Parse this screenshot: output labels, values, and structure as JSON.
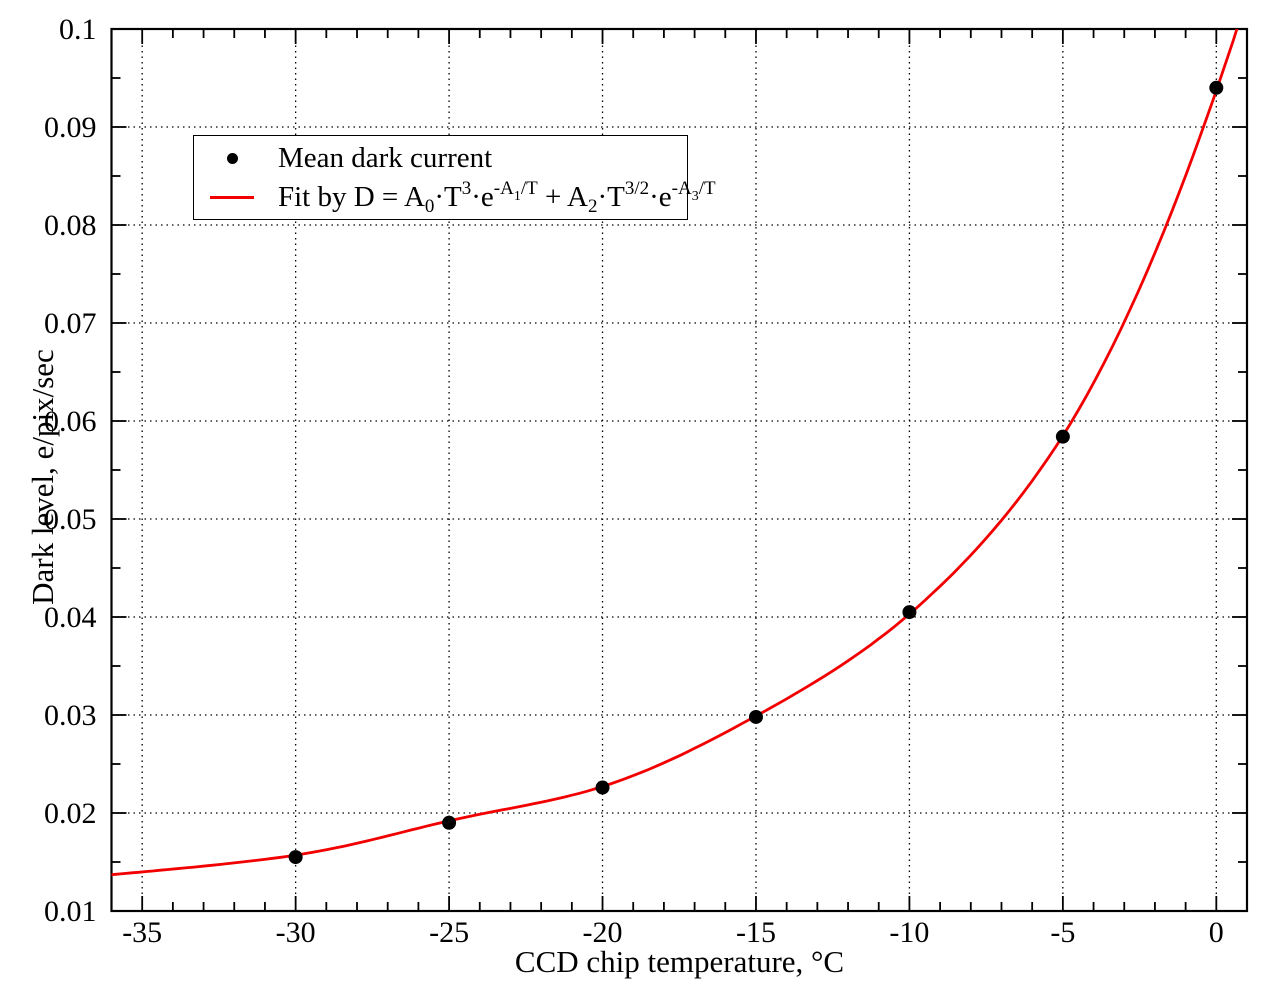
{
  "page": {
    "background": "#ffffff"
  },
  "chart_data": {
    "type": "scatter",
    "title": "",
    "xlabel": "CCD chip temperature, °C",
    "ylabel": "Dark level, e/pix/sec",
    "xlim": [
      -36,
      1
    ],
    "ylim": [
      0.01,
      0.1
    ],
    "x_major_ticks": [
      -35,
      -30,
      -25,
      -20,
      -15,
      -10,
      -5,
      0
    ],
    "x_tick_labels": [
      "-35",
      "-30",
      "-25",
      "-20",
      "-15",
      "-10",
      "-5",
      "0"
    ],
    "x_minor_tick_step": 1,
    "y_major_ticks": [
      0.01,
      0.02,
      0.03,
      0.04,
      0.05,
      0.06,
      0.07,
      0.08,
      0.09,
      0.1
    ],
    "y_tick_labels": [
      "0.01",
      "0.02",
      "0.03",
      "0.04",
      "0.05",
      "0.06",
      "0.07",
      "0.08",
      "0.09",
      "0.1"
    ],
    "y_minor_tick_step": 0.005,
    "grid": {
      "style": "dotted",
      "at": "major-ticks",
      "color": "#000000"
    },
    "legend_position": "upper-left",
    "series": [
      {
        "name": "Mean dark current",
        "type": "scatter",
        "marker": "filled-circle",
        "color": "#000000",
        "points": [
          [
            -30,
            0.0155
          ],
          [
            -25,
            0.019
          ],
          [
            -20,
            0.0226
          ],
          [
            -15,
            0.0298
          ],
          [
            -10,
            0.0405
          ],
          [
            -5,
            0.0584
          ],
          [
            0,
            0.094
          ]
        ]
      },
      {
        "name": "Fit by D = A0·T^3·e^(-A1/T) + A2·T^(3/2)·e^(-A3/T)",
        "type": "line",
        "color": "#f20000",
        "curve_anchors": [
          [
            -36,
            0.0137
          ],
          [
            -30,
            0.0157
          ],
          [
            -25,
            0.0192
          ],
          [
            -20,
            0.0227
          ],
          [
            -15,
            0.0299
          ],
          [
            -10,
            0.0403
          ],
          [
            -5,
            0.0585
          ],
          [
            0,
            0.0937
          ],
          [
            1,
            0.1035
          ]
        ]
      }
    ]
  },
  "legend": {
    "mean_label": "Mean dark current",
    "fit_label_parts": [
      {
        "t": "text",
        "v": "Fit by D = A"
      },
      {
        "t": "sub",
        "v": "0"
      },
      {
        "t": "text",
        "v": "·T"
      },
      {
        "t": "sup",
        "v": "3"
      },
      {
        "t": "text",
        "v": "·e"
      },
      {
        "t": "sup",
        "v": "-A"
      },
      {
        "t": "supsub",
        "v": "1"
      },
      {
        "t": "sup",
        "v": "/T"
      },
      {
        "t": "text",
        "v": " + A"
      },
      {
        "t": "sub",
        "v": "2"
      },
      {
        "t": "text",
        "v": "·T"
      },
      {
        "t": "sup",
        "v": "3/2"
      },
      {
        "t": "text",
        "v": "·e"
      },
      {
        "t": "sup",
        "v": "-A"
      },
      {
        "t": "supsub",
        "v": "3"
      },
      {
        "t": "sup",
        "v": "/T"
      }
    ]
  }
}
